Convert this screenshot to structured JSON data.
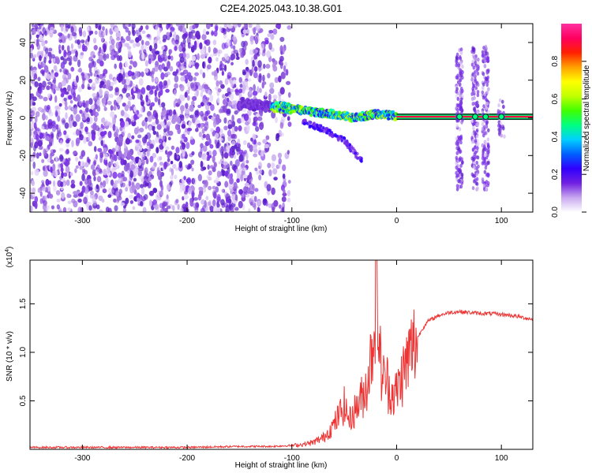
{
  "title": "C2E4.2025.043.10.38.G01",
  "chart_data": [
    {
      "type": "heatmap",
      "title": "C2E4.2025.043.10.38.G01",
      "xlabel": "Height of straight line (km)",
      "ylabel": "Frequency (Hz)",
      "xlim": [
        -350,
        130
      ],
      "ylim": [
        -50,
        50
      ],
      "xticks": [
        -300,
        -200,
        -100,
        0,
        100
      ],
      "xtick_labels": [
        "-300",
        "-200",
        "-100",
        "0",
        "100"
      ],
      "yticks": [
        -40,
        -20,
        0,
        20,
        40
      ],
      "ytick_labels": [
        "-40",
        "-20",
        "0",
        "20",
        "40"
      ],
      "colorbar": {
        "label": "Normalized spectral amplitude",
        "range": [
          0,
          1
        ],
        "ticks": [
          "0.0",
          "0.2",
          "0.4",
          "0.6",
          "0.8"
        ],
        "colors": [
          "#ffffff",
          "#c8a8f0",
          "#7020e0",
          "#3000ff",
          "#0060ff",
          "#00d0ff",
          "#00ff80",
          "#40ff00",
          "#c0ff00",
          "#ffff00",
          "#ffa000",
          "#ff2000",
          "#ff0060",
          "#ff30a0"
        ]
      },
      "features": {
        "noise_region_km": [
          -350,
          -110
        ],
        "trace": [
          [
            -150,
            8
          ],
          [
            -120,
            6
          ],
          [
            -100,
            5
          ],
          [
            -80,
            3
          ],
          [
            -60,
            2
          ],
          [
            -40,
            0
          ],
          [
            -20,
            2
          ],
          [
            0,
            1
          ],
          [
            130,
            0
          ]
        ],
        "steady_line_km": [
          0,
          130
        ],
        "side_branch": [
          [
            -90,
            -2
          ],
          [
            -70,
            -6
          ],
          [
            -50,
            -12
          ],
          [
            -35,
            -22
          ]
        ],
        "spread_columns_km": [
          60,
          75,
          85,
          100
        ]
      }
    },
    {
      "type": "line",
      "xlabel": "Height of straight line (km)",
      "ylabel": "SNR (10 * v/v)",
      "y_multiplier": "(x10",
      "y_multiplier_exp": "4",
      "y_multiplier_close": ")",
      "xlim": [
        -350,
        130
      ],
      "ylim": [
        0,
        1.95
      ],
      "xticks": [
        -300,
        -200,
        -100,
        0,
        100
      ],
      "xtick_labels": [
        "-300",
        "-200",
        "-100",
        "0",
        "100"
      ],
      "yticks": [
        0.5,
        1.0,
        1.5
      ],
      "ytick_labels": [
        "0.5",
        "1.0",
        "1.5"
      ],
      "color": "#ee3333",
      "series": [
        {
          "x": [
            -350,
            -300,
            -250,
            -200,
            -150,
            -120,
            -100,
            -90,
            -80,
            -70,
            -60,
            -55,
            -50,
            -45,
            -40,
            -35,
            -30,
            -25,
            -22,
            -19,
            -17,
            -15,
            -12,
            -10,
            -8,
            -5,
            -2,
            0,
            5,
            10,
            15,
            20,
            25,
            30,
            40,
            50,
            60,
            70,
            80,
            90,
            100,
            110,
            120,
            130
          ],
          "y": [
            0.02,
            0.02,
            0.02,
            0.02,
            0.03,
            0.03,
            0.04,
            0.05,
            0.07,
            0.12,
            0.25,
            0.35,
            0.45,
            0.3,
            0.4,
            0.5,
            0.6,
            0.9,
            1.2,
            1.95,
            1.1,
            0.85,
            0.7,
            0.75,
            0.65,
            0.6,
            0.55,
            0.6,
            0.75,
            0.9,
            1.05,
            1.15,
            1.25,
            1.32,
            1.38,
            1.41,
            1.42,
            1.41,
            1.4,
            1.4,
            1.39,
            1.38,
            1.36,
            1.34
          ]
        }
      ]
    }
  ]
}
